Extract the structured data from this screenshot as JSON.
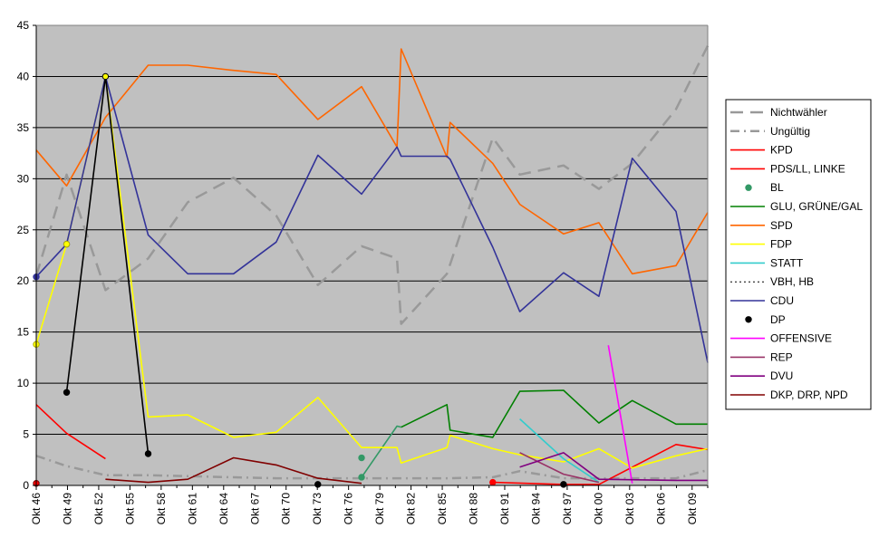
{
  "chart_data": {
    "type": "line",
    "title": "",
    "xlabel": "",
    "ylabel": "",
    "ylim": [
      0,
      45
    ],
    "yticks": [
      "0",
      "5",
      "10",
      "15",
      "20",
      "25",
      "30",
      "35",
      "40",
      "45"
    ],
    "xlim": [
      1946.75,
      2011.25
    ],
    "xtick_labels": [
      "Okt 46",
      "Okt 49",
      "Okt 52",
      "Okt 55",
      "Okt 58",
      "Okt 61",
      "Okt 64",
      "Okt 67",
      "Okt 70",
      "Okt 73",
      "Okt 76",
      "Okt 79",
      "Okt 82",
      "Okt 85",
      "Okt 88",
      "Okt 91",
      "Okt 94",
      "Okt 97",
      "Okt 00",
      "Okt 03",
      "Okt 06",
      "Okt 09"
    ],
    "grid": "horizontal",
    "legend_position": "right",
    "series": [
      {
        "name": "Nichtwähler",
        "color": "#999999",
        "style": "dash",
        "points": [
          [
            1946.75,
            20.5
          ],
          [
            1949.67,
            30.4
          ],
          [
            1953.4,
            19.1
          ],
          [
            1957.5,
            22.2
          ],
          [
            1961.3,
            27.7
          ],
          [
            1965.7,
            30.1
          ],
          [
            1969.8,
            26.4
          ],
          [
            1973.8,
            19.6
          ],
          [
            1978.0,
            23.4
          ],
          [
            1981.4,
            22.2
          ],
          [
            1981.8,
            15.8
          ],
          [
            1986.2,
            20.7
          ],
          [
            1990.6,
            34.0
          ],
          [
            1993.2,
            30.4
          ],
          [
            1997.4,
            31.3
          ],
          [
            2000.8,
            29.0
          ],
          [
            2004.0,
            31.5
          ],
          [
            2008.2,
            36.8
          ],
          [
            2011.25,
            43.0
          ]
        ]
      },
      {
        "name": "Ungültig",
        "color": "#999999",
        "style": "dashdot",
        "points": [
          [
            1946.75,
            2.9
          ],
          [
            1949.67,
            1.9
          ],
          [
            1953.4,
            1.0
          ],
          [
            1957.5,
            1.0
          ],
          [
            1961.3,
            0.9
          ],
          [
            1965.7,
            0.8
          ],
          [
            1969.8,
            0.7
          ],
          [
            1973.8,
            0.7
          ],
          [
            1978.0,
            0.7
          ],
          [
            1981.8,
            0.7
          ],
          [
            1986.2,
            0.7
          ],
          [
            1990.6,
            0.8
          ],
          [
            1993.2,
            1.4
          ],
          [
            1997.4,
            0.7
          ],
          [
            2000.8,
            0.7
          ],
          [
            2004.0,
            0.7
          ],
          [
            2008.2,
            0.7
          ],
          [
            2011.25,
            1.5
          ]
        ]
      },
      {
        "name": "KPD",
        "color": "#ff0000",
        "style": "solid",
        "points": [
          [
            1946.75,
            7.9
          ],
          [
            1949.67,
            5.1
          ],
          [
            1953.4,
            2.6
          ]
        ]
      },
      {
        "name": "PDS/LL, LINKE",
        "color": "#ff0000",
        "style": "solid",
        "points": [
          [
            1990.6,
            0.3
          ],
          [
            1997.4,
            0.1
          ],
          [
            2000.8,
            0.1
          ],
          [
            2008.2,
            4.0
          ],
          [
            2011.25,
            3.5
          ]
        ]
      },
      {
        "name": "BL",
        "color": "#339966",
        "style": "solid",
        "points": [
          [
            1978.0,
            0.8
          ],
          [
            1981.4,
            5.8
          ],
          [
            1981.8,
            5.7
          ]
        ]
      },
      {
        "name": "GLU, GRÜNE/GAL",
        "color": "#008000",
        "style": "solid",
        "points": [
          [
            1981.8,
            5.7
          ],
          [
            1986.2,
            7.9
          ],
          [
            1986.5,
            5.4
          ],
          [
            1990.6,
            4.7
          ],
          [
            1993.2,
            9.2
          ],
          [
            1997.4,
            9.3
          ],
          [
            2000.8,
            6.1
          ],
          [
            2004.0,
            8.3
          ],
          [
            2008.2,
            6.0
          ],
          [
            2011.25,
            6.0
          ]
        ]
      },
      {
        "name": "SPD",
        "color": "#ff6600",
        "style": "solid",
        "points": [
          [
            1946.75,
            32.8
          ],
          [
            1949.67,
            29.3
          ],
          [
            1953.4,
            36.0
          ],
          [
            1957.5,
            41.1
          ],
          [
            1961.3,
            41.1
          ],
          [
            1965.7,
            40.6
          ],
          [
            1969.8,
            40.2
          ],
          [
            1973.8,
            35.8
          ],
          [
            1978.0,
            39.0
          ],
          [
            1981.4,
            33.1
          ],
          [
            1981.8,
            42.7
          ],
          [
            1986.2,
            32.1
          ],
          [
            1986.5,
            35.5
          ],
          [
            1990.6,
            31.5
          ],
          [
            1993.2,
            27.5
          ],
          [
            1997.4,
            24.6
          ],
          [
            2000.8,
            25.7
          ],
          [
            2004.0,
            20.7
          ],
          [
            2008.2,
            21.5
          ],
          [
            2011.25,
            26.7
          ]
        ]
      },
      {
        "name": "FDP",
        "color": "#ffff00",
        "style": "solid",
        "points": [
          [
            1946.75,
            13.8
          ],
          [
            1949.67,
            23.6
          ],
          [
            1953.4,
            40.0
          ],
          [
            1957.5,
            6.7
          ],
          [
            1961.3,
            6.9
          ],
          [
            1965.7,
            4.7
          ],
          [
            1969.8,
            5.2
          ],
          [
            1973.8,
            8.6
          ],
          [
            1978.0,
            3.7
          ],
          [
            1981.4,
            3.7
          ],
          [
            1981.8,
            2.2
          ],
          [
            1986.2,
            3.7
          ],
          [
            1986.5,
            4.9
          ],
          [
            1990.6,
            3.6
          ],
          [
            1993.2,
            3.0
          ],
          [
            1997.4,
            2.3
          ],
          [
            2000.8,
            3.6
          ],
          [
            2004.0,
            1.7
          ],
          [
            2008.2,
            2.9
          ],
          [
            2011.25,
            3.6
          ]
        ]
      },
      {
        "name": "STATT",
        "color": "#33cccc",
        "style": "solid",
        "points": [
          [
            1993.2,
            6.5
          ],
          [
            1997.4,
            2.6
          ],
          [
            2000.8,
            0.3
          ]
        ]
      },
      {
        "name": "VBH, HB",
        "color": "#000000",
        "style": "dotted",
        "points": [
          [
            1949.67,
            23.6
          ],
          [
            1953.4,
            40.0
          ]
        ]
      },
      {
        "name": "CDU",
        "color": "#333399",
        "style": "solid",
        "points": [
          [
            1946.75,
            20.4
          ],
          [
            1949.67,
            23.6
          ],
          [
            1953.4,
            40.0
          ],
          [
            1957.5,
            24.5
          ],
          [
            1961.3,
            20.7
          ],
          [
            1965.7,
            20.7
          ],
          [
            1969.8,
            23.8
          ],
          [
            1973.8,
            32.3
          ],
          [
            1978.0,
            28.5
          ],
          [
            1981.4,
            33.1
          ],
          [
            1981.8,
            32.2
          ],
          [
            1986.2,
            32.2
          ],
          [
            1986.5,
            31.9
          ],
          [
            1990.6,
            23.3
          ],
          [
            1993.2,
            17.0
          ],
          [
            1997.4,
            20.8
          ],
          [
            2000.8,
            18.5
          ],
          [
            2004.0,
            32.0
          ],
          [
            2008.2,
            26.8
          ],
          [
            2011.25,
            12.0
          ]
        ]
      },
      {
        "name": "DP",
        "color": "#000000",
        "style": "solid",
        "points": [
          [
            1949.67,
            9.1
          ],
          [
            1953.4,
            40.0
          ],
          [
            1957.5,
            3.1
          ]
        ]
      },
      {
        "name": "OFFENSIVE",
        "color": "#ff00ff",
        "style": "solid",
        "points": [
          [
            2001.7,
            13.7
          ],
          [
            2004.0,
            0.2
          ]
        ]
      },
      {
        "name": "REP",
        "color": "#993366",
        "style": "solid",
        "points": [
          [
            1993.2,
            3.2
          ],
          [
            1997.4,
            1.1
          ],
          [
            2000.8,
            0.3
          ]
        ]
      },
      {
        "name": "DVU",
        "color": "#800080",
        "style": "solid",
        "points": [
          [
            1993.2,
            1.8
          ],
          [
            1997.4,
            3.2
          ],
          [
            2000.8,
            0.6
          ],
          [
            2008.2,
            0.5
          ],
          [
            2011.25,
            0.5
          ]
        ]
      },
      {
        "name": "DKP, DRP, NPD",
        "color": "#800000",
        "style": "solid",
        "points": [
          [
            1953.4,
            0.6
          ],
          [
            1957.5,
            0.3
          ],
          [
            1961.3,
            0.6
          ],
          [
            1965.7,
            2.7
          ],
          [
            1969.8,
            2.0
          ],
          [
            1973.8,
            0.7
          ],
          [
            1978.0,
            0.2
          ]
        ]
      }
    ],
    "markers": [
      {
        "series": "CDU",
        "x": 1946.75,
        "y": 20.4,
        "color": "#333399",
        "edge": "#333399"
      },
      {
        "series": "CDU",
        "x": 1949.67,
        "y": 23.6,
        "color": "#333399",
        "edge": "#333399"
      },
      {
        "series": "FDP",
        "x": 1946.75,
        "y": 13.8,
        "color": "#ffff00",
        "edge": "#b0b000"
      },
      {
        "series": "FDP",
        "x": 1949.67,
        "y": 23.6,
        "color": "#ffff00",
        "edge": "#b0b000"
      },
      {
        "series": "FDP",
        "x": 1953.4,
        "y": 40.0,
        "color": "#ffff00",
        "edge": "#000000"
      },
      {
        "series": "DP",
        "x": 1949.67,
        "y": 9.1,
        "color": "#000000",
        "edge": "#000000"
      },
      {
        "series": "DP",
        "x": 1957.5,
        "y": 3.1,
        "color": "#000000",
        "edge": "#000000"
      },
      {
        "series": "DP",
        "x": 1973.8,
        "y": 0.1,
        "color": "#000000",
        "edge": "#000000"
      },
      {
        "series": "DP",
        "x": 1997.4,
        "y": 0.1,
        "color": "#000000",
        "edge": "#000000"
      },
      {
        "series": "BL",
        "x": 1978.0,
        "y": 2.7,
        "color": "#339966",
        "edge": "#339966"
      },
      {
        "series": "BL",
        "x": 1978.0,
        "y": 0.8,
        "color": "#339966",
        "edge": "#339966"
      },
      {
        "series": "KPD",
        "x": 1946.75,
        "y": 0.2,
        "color": "#ff0000",
        "edge": "#800000"
      },
      {
        "series": "PDS/LL, LINKE",
        "x": 1990.6,
        "y": 0.3,
        "color": "#ff0000",
        "edge": "#ff0000"
      }
    ]
  }
}
